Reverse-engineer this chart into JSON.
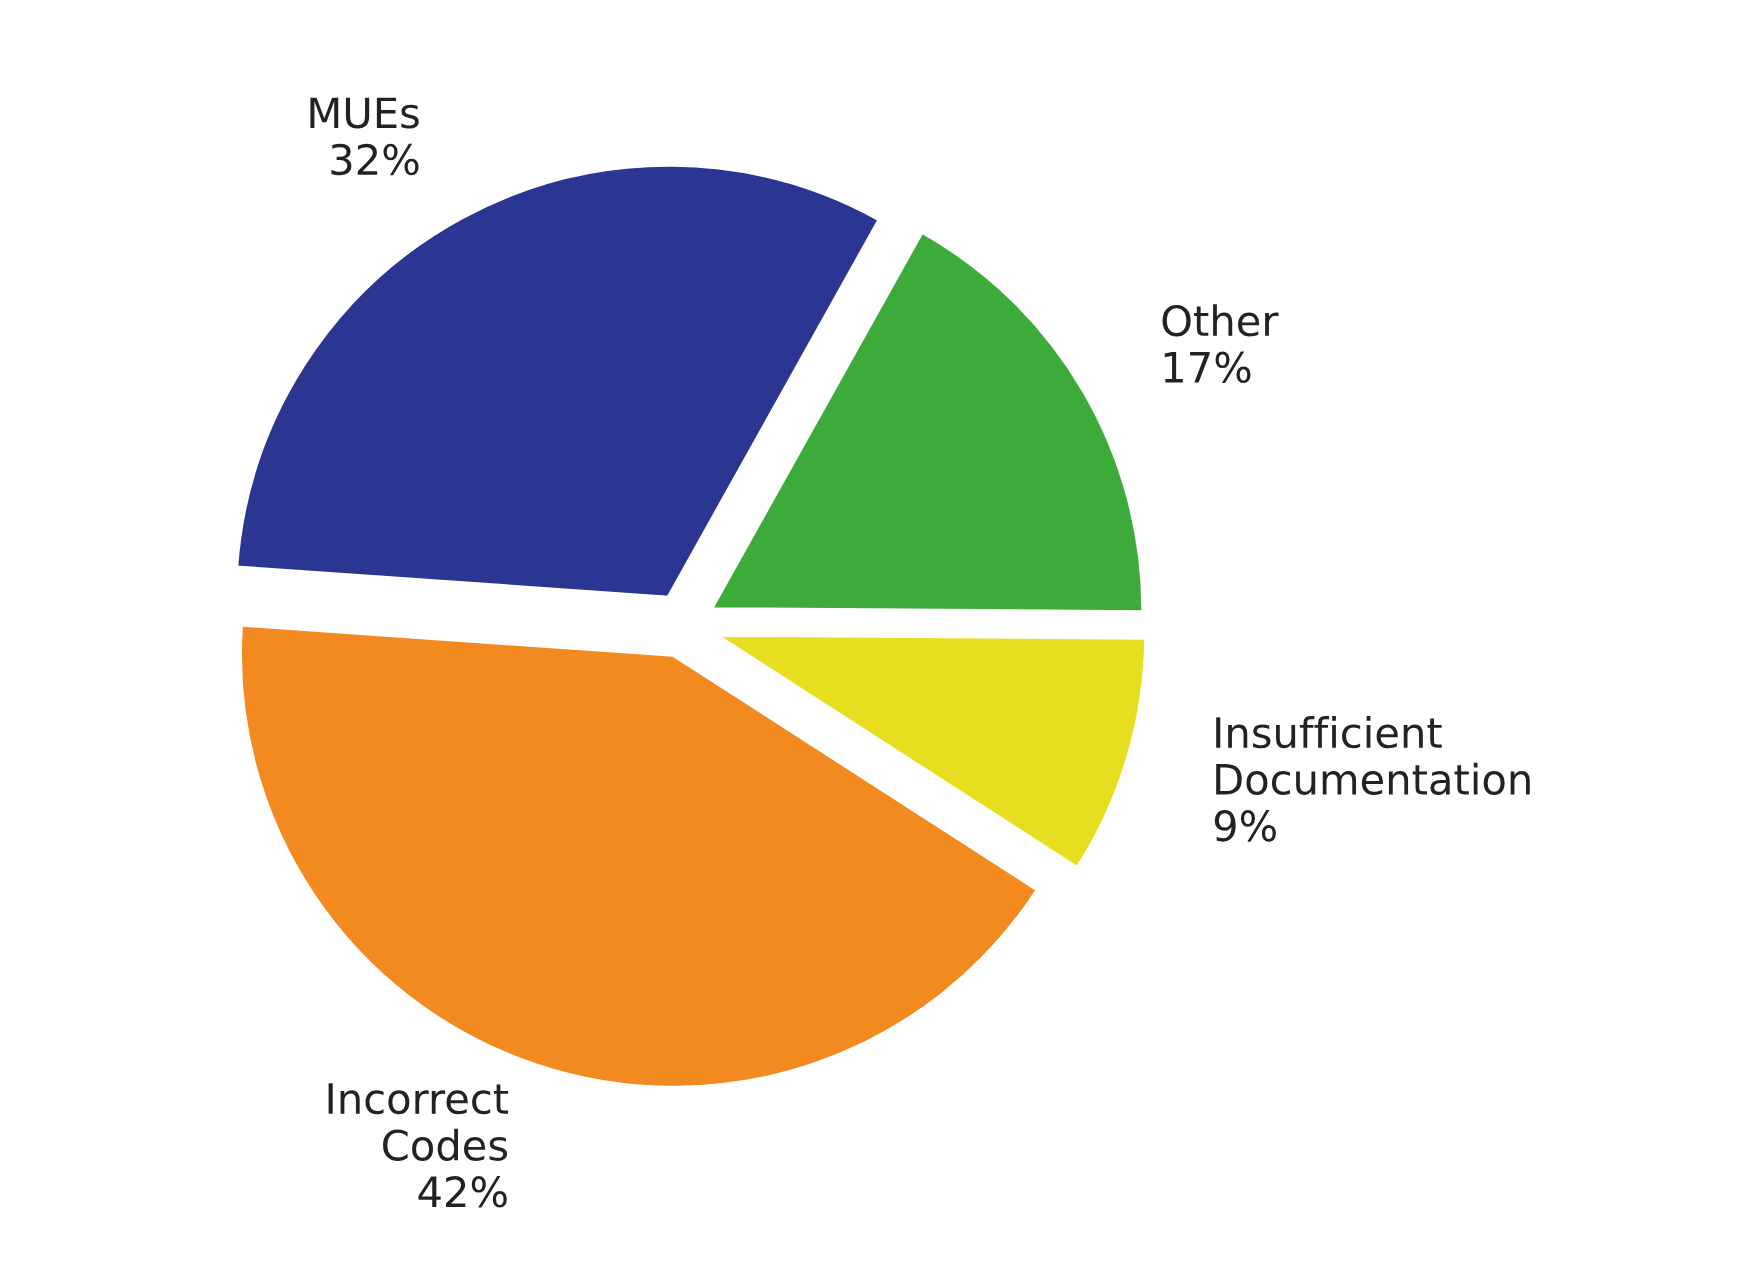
{
  "chart_data": {
    "type": "pie",
    "categories": [
      "MUEs",
      "Other",
      "Insufficient\nDocumentation",
      "Incorrect\nCodes"
    ],
    "values": [
      32,
      17,
      9,
      42
    ],
    "value_labels": [
      "32%",
      "17%",
      "9%",
      "42%"
    ],
    "colors": [
      "#2b3592",
      "#3cab3a",
      "#e6de1e",
      "#f38a1f"
    ]
  }
}
